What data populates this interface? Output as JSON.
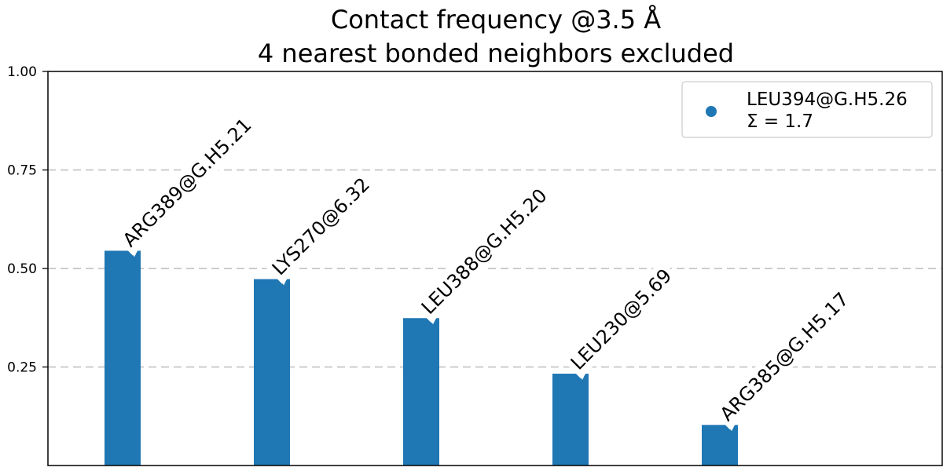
{
  "chart_data": {
    "type": "bar",
    "title": [
      "Contact frequency @3.5 Å",
      "4 nearest bonded neighbors excluded"
    ],
    "categories": [
      "ARG389@G.H5.21",
      "LYS270@6.32",
      "LEU388@G.H5.20",
      "LEU230@5.69",
      "ARG385@G.H5.17"
    ],
    "values": [
      0.545,
      0.473,
      0.374,
      0.233,
      0.103
    ],
    "ylim": [
      0,
      1.0
    ],
    "yticks": [
      0.25,
      0.5,
      0.75,
      1.0
    ],
    "ytick_labels": [
      "0.25",
      "0.50",
      "0.75",
      "1.00"
    ],
    "xlabel": "",
    "ylabel": "",
    "grid": "horizontal dashed",
    "bar_color": "#1f77b4",
    "grid_color": "#cccccc",
    "legend": {
      "placement": "top-right",
      "entries": [
        "LEU394@G.H5.26",
        "Σ = 1.7"
      ],
      "marker_color": "#1f77b4"
    }
  }
}
